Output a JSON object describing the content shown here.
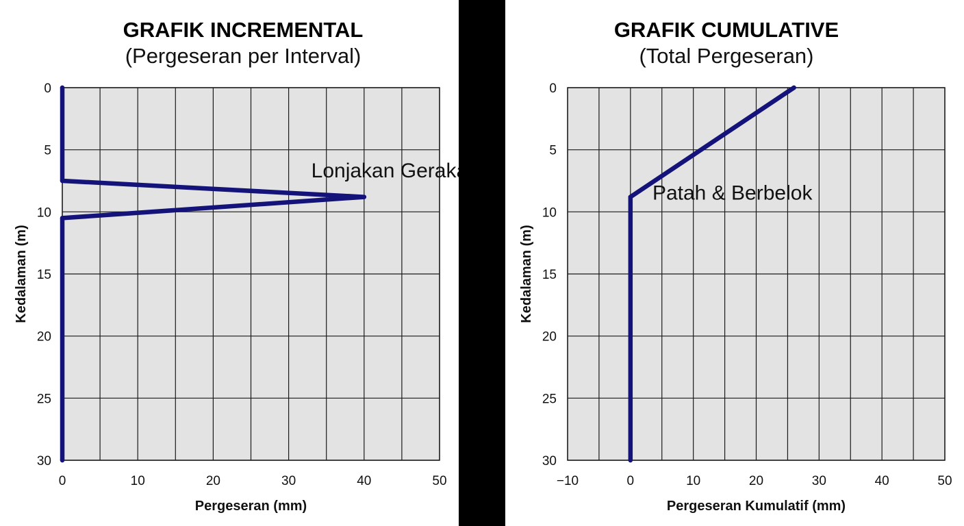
{
  "chart_data": [
    {
      "type": "line",
      "title": "GRAFIK INCREMENTAL",
      "subtitle": "(Pergeseran per Interval)",
      "xlabel": "Pergeseran (mm)",
      "ylabel": "Kedalaman (m)",
      "xlim": [
        0,
        50
      ],
      "ylim": [
        0,
        30
      ],
      "y_inverted": true,
      "xticks": [
        0,
        10,
        20,
        30,
        40,
        50
      ],
      "yticks": [
        0,
        5,
        10,
        15,
        20,
        25,
        30
      ],
      "xtick_labels": [
        "0",
        "10",
        "20",
        "30",
        "40",
        "50"
      ],
      "ytick_labels": [
        "0",
        "5",
        "10",
        "15",
        "20",
        "25",
        "30"
      ],
      "grid": true,
      "series": [
        {
          "color": "#13137a",
          "points": [
            [
              0,
              0
            ],
            [
              0,
              7.5
            ],
            [
              40,
              8.8
            ],
            [
              0,
              10.5
            ],
            [
              0,
              30
            ]
          ]
        }
      ],
      "annotations": [
        {
          "text": "Lonjakan Gerakan",
          "x": 33,
          "y": 7
        }
      ]
    },
    {
      "type": "line",
      "title": "GRAFIK CUMULATIVE",
      "subtitle": "(Total Pergeseran)",
      "xlabel": "Pergeseran Kumulatif (mm)",
      "ylabel": "Kedalaman (m)",
      "xlim": [
        -10,
        50
      ],
      "ylim": [
        0,
        30
      ],
      "y_inverted": true,
      "xticks": [
        -10,
        0,
        10,
        20,
        30,
        40,
        50
      ],
      "yticks": [
        0,
        5,
        10,
        15,
        20,
        25,
        30
      ],
      "xtick_labels": [
        "−10",
        "0",
        "10",
        "20",
        "30",
        "40",
        "50"
      ],
      "ytick_labels": [
        "0",
        "5",
        "10",
        "15",
        "20",
        "25",
        "30"
      ],
      "grid": true,
      "series": [
        {
          "color": "#13137a",
          "points": [
            [
              26,
              0
            ],
            [
              0,
              8.8
            ],
            [
              0,
              30
            ]
          ]
        }
      ],
      "annotations": [
        {
          "text": "Patah & Berbelok",
          "x": 3.5,
          "y": 8.8
        }
      ]
    }
  ]
}
